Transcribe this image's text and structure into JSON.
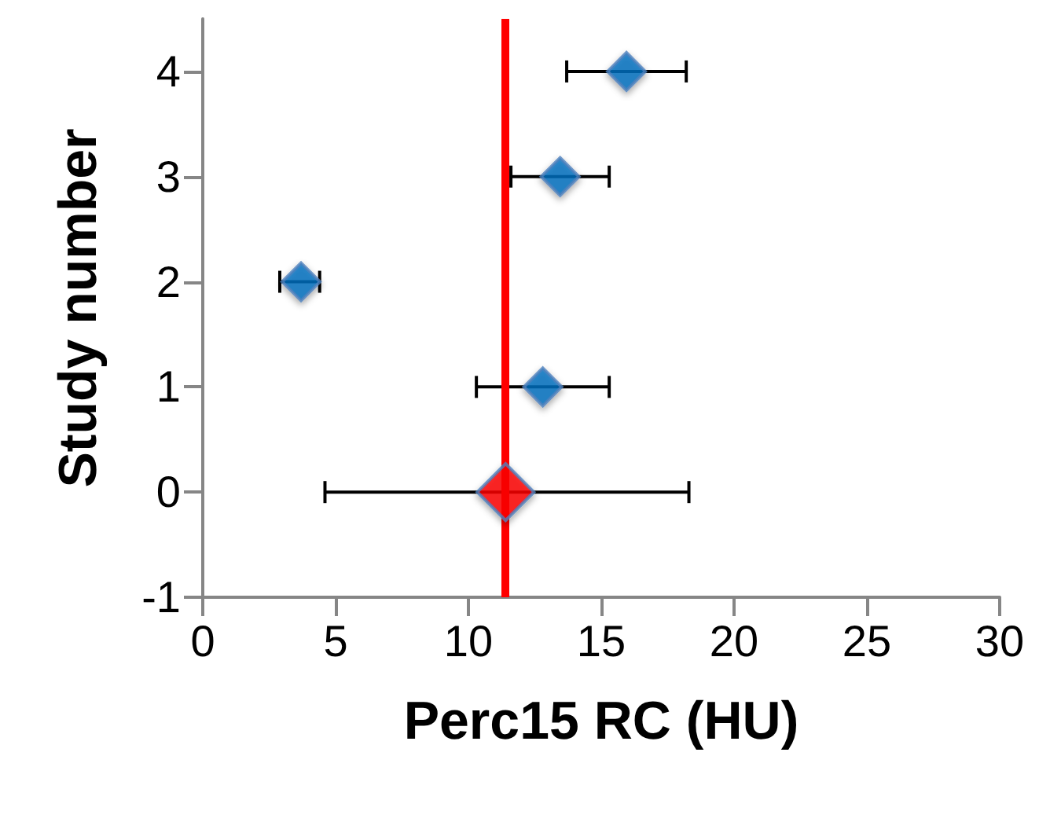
{
  "chart_data": {
    "type": "scatter",
    "xlabel": "Perc15 RC (HU)",
    "ylabel": "Study number",
    "xlim": [
      0,
      30
    ],
    "xticks": [
      0,
      5,
      10,
      15,
      20,
      25,
      30
    ],
    "ylim": [
      -1,
      4.5
    ],
    "yticks": [
      -1,
      0,
      1,
      2,
      3,
      4
    ],
    "grid": false,
    "marker": "diamond",
    "series": [
      {
        "color": "#0070c0",
        "x": [
          15.95,
          13.45,
          3.7,
          12.8
        ],
        "values": [
          4,
          3,
          2,
          1
        ],
        "xerrors": [
          [
            13.7,
            18.2
          ],
          [
            11.6,
            15.3
          ],
          [
            2.9,
            4.4
          ],
          [
            10.3,
            15.3
          ]
        ]
      },
      {
        "color": "#ff0000",
        "x": [
          11.4
        ],
        "values": [
          0
        ],
        "xerrors": [
          [
            4.6,
            18.3
          ]
        ]
      }
    ],
    "ref_lines": [
      {
        "axis": "x",
        "value": 11.4,
        "color": "#ff0000",
        "line_style": "solid"
      }
    ]
  }
}
